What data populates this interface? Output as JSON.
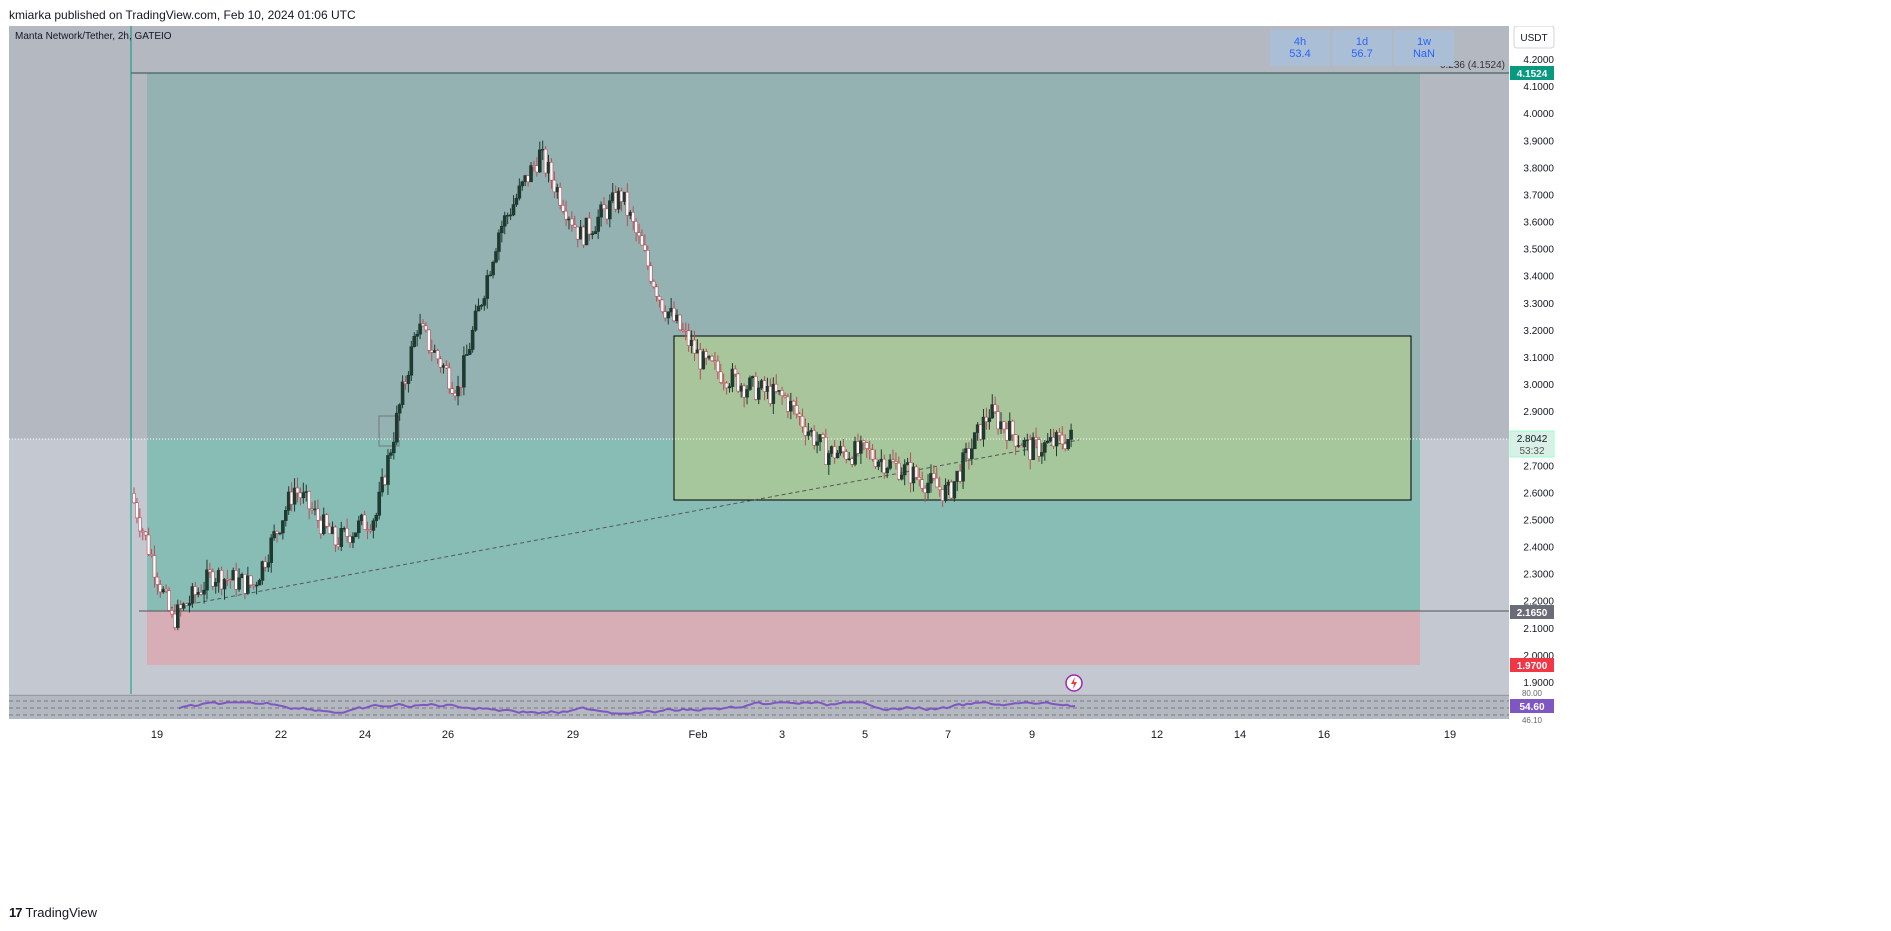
{
  "header": {
    "published_text": "kmiarka published on TradingView.com, Feb 10, 2024 01:06 UTC"
  },
  "chart_header": {
    "symbol_text": "Manta Network/Tether, 2h, GATEIO"
  },
  "currency_button": "USDT",
  "timeframe_badges": [
    {
      "tf": "4h",
      "value": "53.4"
    },
    {
      "tf": "1d",
      "value": "56.7"
    },
    {
      "tf": "1w",
      "value": "NaN"
    }
  ],
  "fib_label": "0.236 (4.1524)",
  "price_axis": {
    "ticks": [
      "4.2000",
      "4.1000",
      "4.0000",
      "3.9000",
      "3.8000",
      "3.7000",
      "3.6000",
      "3.5000",
      "3.4000",
      "3.3000",
      "3.2000",
      "3.1000",
      "3.0000",
      "2.9000",
      "2.8000",
      "2.7000",
      "2.6000",
      "2.5000",
      "2.4000",
      "2.3000",
      "2.2000",
      "2.1000",
      "2.0000",
      "1.9000"
    ],
    "badges": {
      "target": "4.1524",
      "current": "2.8042",
      "countdown": "53:32",
      "entry": "2.1650",
      "stop": "1.9700"
    }
  },
  "rsi": {
    "value_badge": "54.60",
    "partial_top_label": "80.00",
    "partial_bottom_label": "46.10"
  },
  "time_axis": [
    "19",
    "22",
    "24",
    "26",
    "29",
    "Feb",
    "3",
    "5",
    "7",
    "9",
    "12",
    "14",
    "16",
    "19"
  ],
  "footer": {
    "brand": "TradingView"
  },
  "colors": {
    "chart_bg": "#b4b8c1",
    "profit_zone": "#8fb5b0",
    "loss_zone": "#d8aeb6",
    "range_box": "#a8c896",
    "candle_up": "#1f3a30",
    "candle_down": "#b8505a",
    "rsi_line": "#7e57c2",
    "target_badge": "#089981",
    "stop_badge": "#f23645",
    "entry_badge": "#6a6d78"
  },
  "chart_data": {
    "type": "candlestick",
    "title": "Manta Network/Tether, 2h, GATEIO",
    "ylim": [
      1.85,
      4.25
    ],
    "series": [
      {
        "name": "price",
        "x": [
          "Jan 18",
          "Jan 19",
          "Jan 20",
          "Jan 21",
          "Jan 22",
          "Jan 23",
          "Jan 24",
          "Jan 25",
          "Jan 26",
          "Jan 27",
          "Jan 28",
          "Jan 29",
          "Jan 30",
          "Jan 31",
          "Feb 1",
          "Feb 2",
          "Feb 3",
          "Feb 4",
          "Feb 5",
          "Feb 6",
          "Feb 7",
          "Feb 8",
          "Feb 9",
          "Feb 10"
        ],
        "close": [
          2.6,
          2.13,
          2.3,
          2.26,
          2.62,
          2.42,
          2.52,
          3.22,
          2.98,
          3.57,
          3.85,
          3.55,
          3.7,
          3.3,
          3.08,
          3.0,
          2.95,
          2.75,
          2.75,
          2.68,
          2.6,
          2.9,
          2.76,
          2.8042
        ]
      }
    ],
    "levels": {
      "target": 4.1524,
      "entry": 2.165,
      "stop": 1.97,
      "range_top": 3.18,
      "range_bottom": 2.57
    },
    "rsi_current": 54.6
  }
}
